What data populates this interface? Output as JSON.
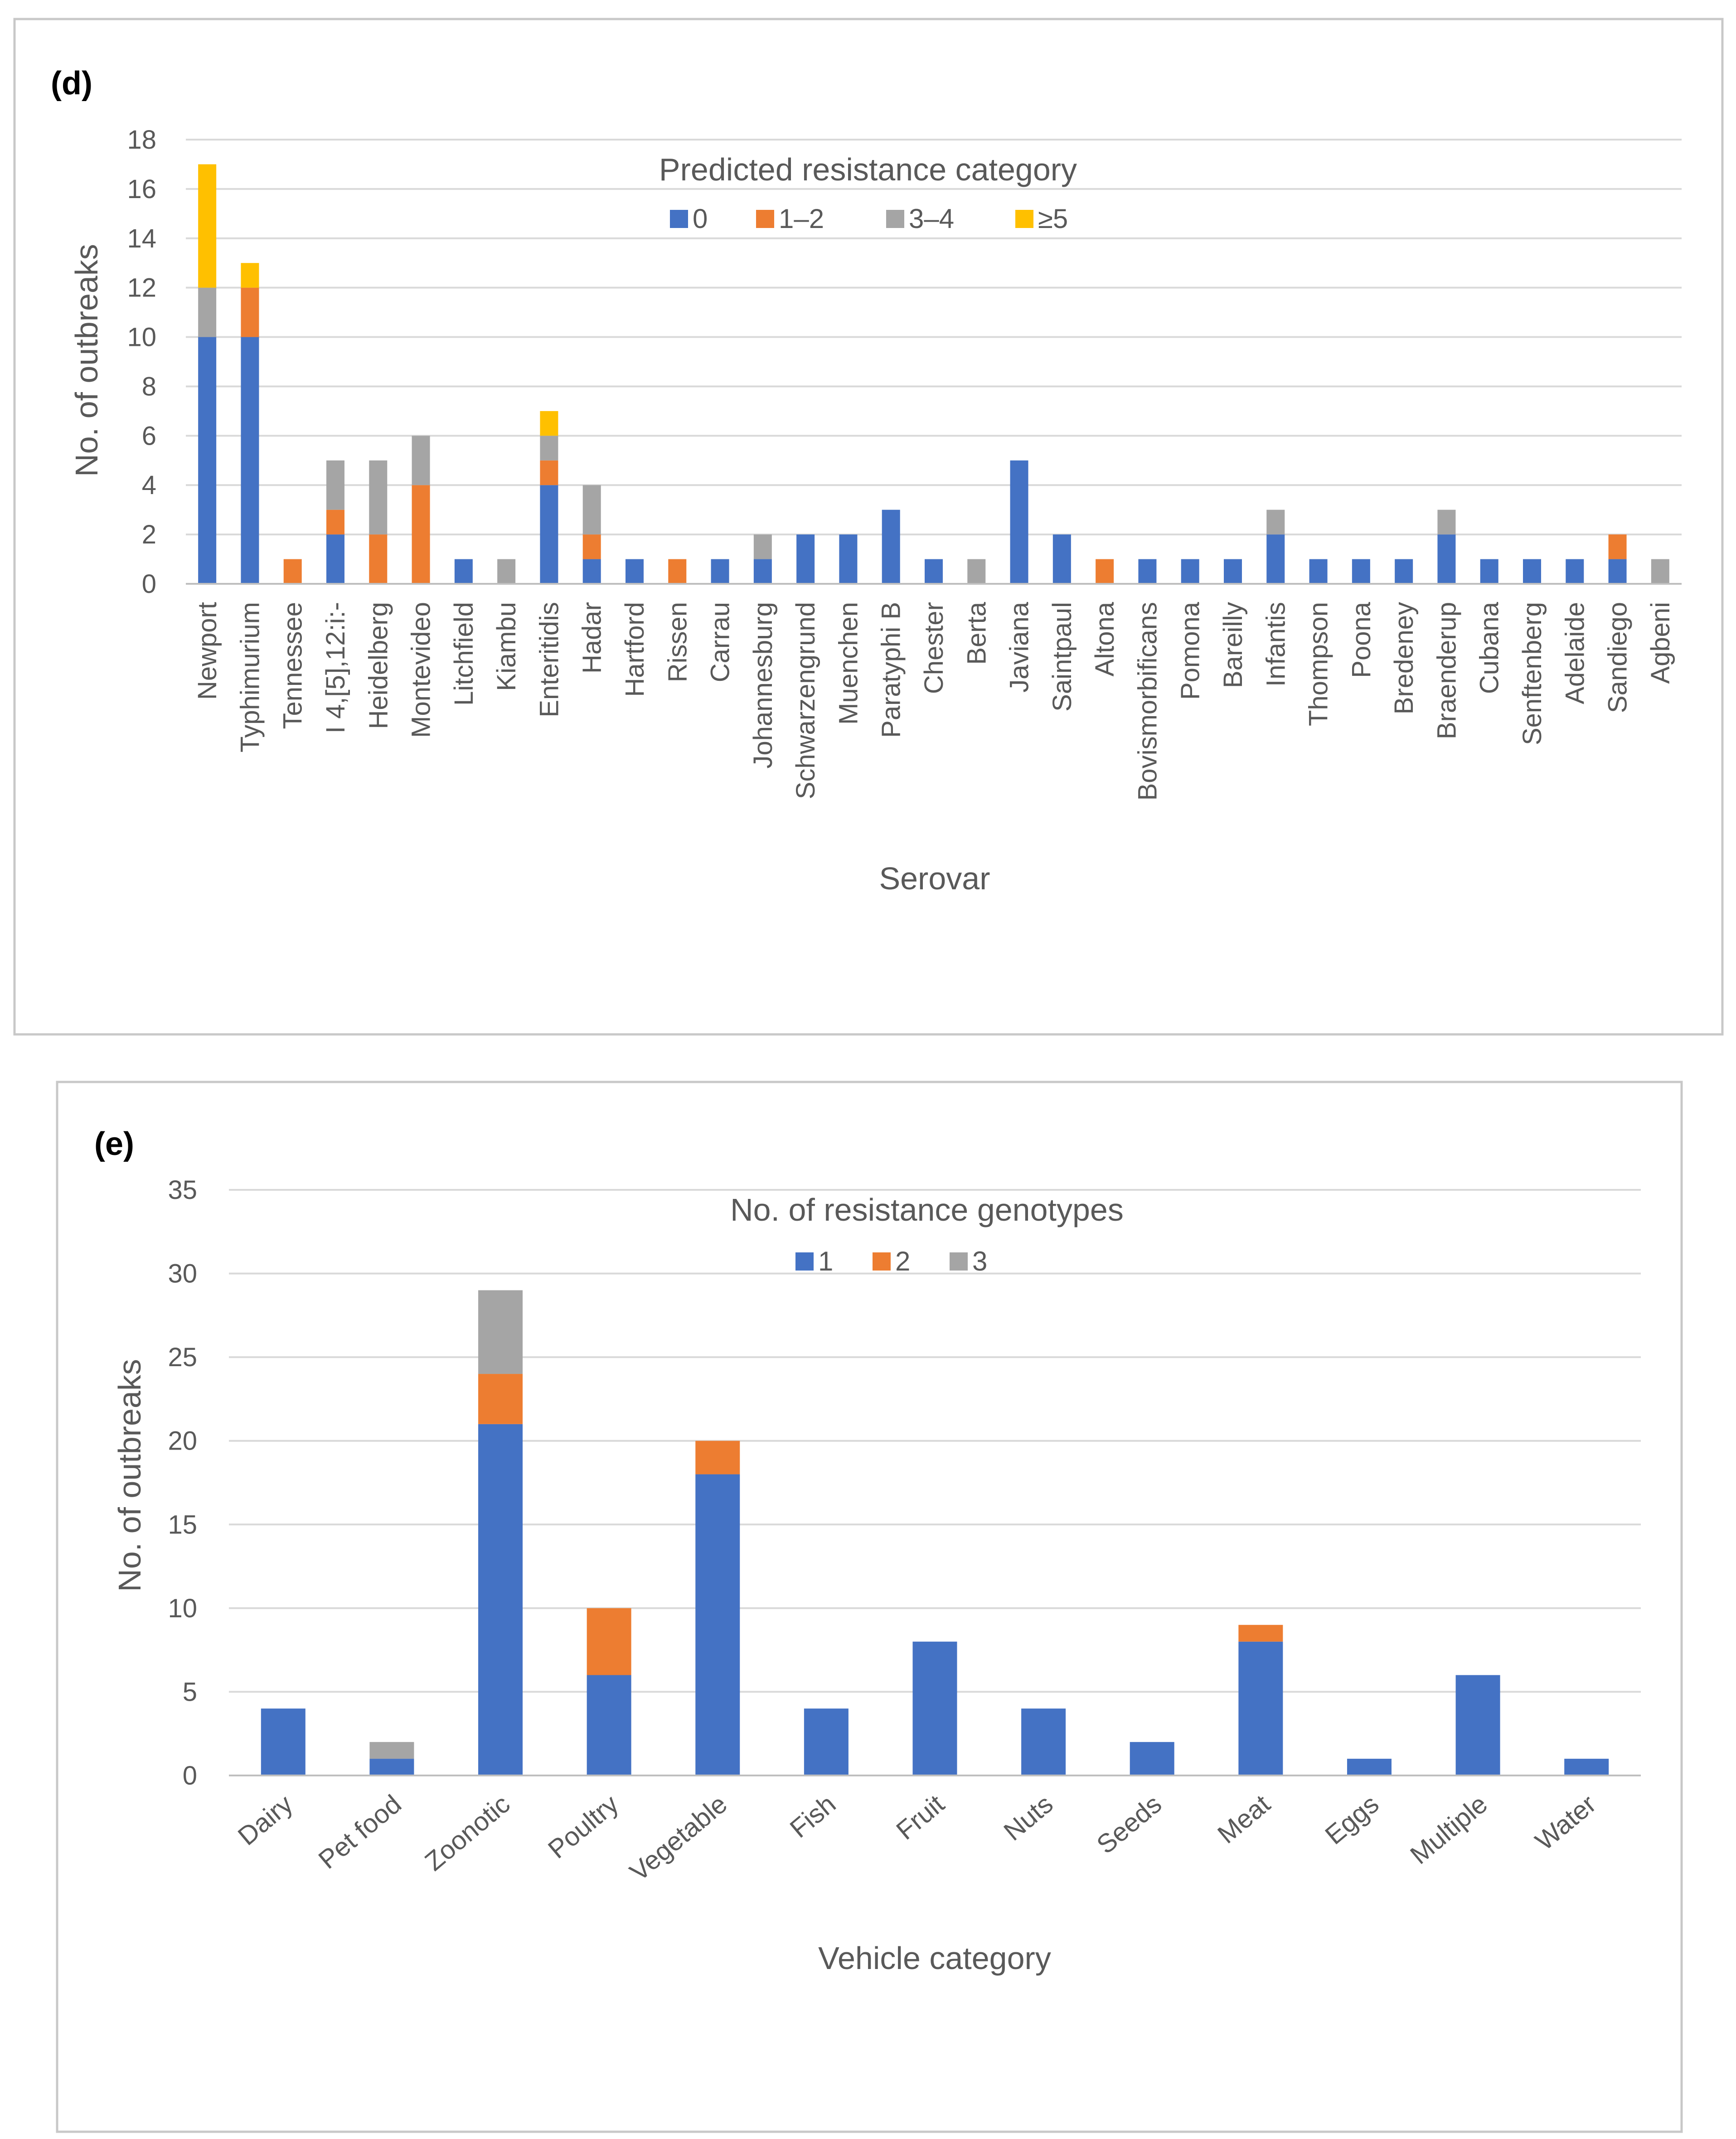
{
  "chart_data": [
    {
      "type": "bar",
      "stacked": true,
      "panel_label": "(d)",
      "xlabel": "Serovar",
      "ylabel": "No. of outbreaks",
      "ylim": [
        0,
        18
      ],
      "yticks": [
        0,
        2,
        4,
        6,
        8,
        10,
        12,
        14,
        16,
        18
      ],
      "grid": true,
      "legend_title": "Predicted resistance category",
      "legend_position": "top-center",
      "categories": [
        "Newport",
        "Typhimurium",
        "Tennessee",
        "I 4,[5],12:i:-",
        "Heidelberg",
        "Montevideo",
        "Litchfield",
        "Kiambu",
        "Enteritidis",
        "Hadar",
        "Hartford",
        "Rissen",
        "Carrau",
        "Johannesburg",
        "Schwarzengrund",
        "Muenchen",
        "Paratyphi B",
        "Chester",
        "Berta",
        "Javiana",
        "Saintpaul",
        "Altona",
        "Bovismorbificans",
        "Pomona",
        "Bareilly",
        "Infantis",
        "Thompson",
        "Poona",
        "Bredeney",
        "Braenderup",
        "Cubana",
        "Senftenberg",
        "Adelaide",
        "Sandiego",
        "Agbeni"
      ],
      "series": [
        {
          "name": "0",
          "color": "#4472c4",
          "values": [
            10,
            10,
            0,
            2,
            0,
            0,
            1,
            0,
            4,
            1,
            1,
            0,
            1,
            1,
            2,
            2,
            3,
            1,
            0,
            5,
            2,
            0,
            1,
            1,
            1,
            2,
            1,
            1,
            1,
            2,
            1,
            1,
            1,
            1,
            0
          ]
        },
        {
          "name": "1–2",
          "color": "#ed7d31",
          "values": [
            0,
            2,
            1,
            1,
            2,
            4,
            0,
            0,
            1,
            1,
            0,
            1,
            0,
            0,
            0,
            0,
            0,
            0,
            0,
            0,
            0,
            1,
            0,
            0,
            0,
            0,
            0,
            0,
            0,
            0,
            0,
            0,
            0,
            1,
            0
          ]
        },
        {
          "name": "3–4",
          "color": "#a5a5a5",
          "values": [
            2,
            0,
            0,
            2,
            3,
            2,
            0,
            1,
            1,
            2,
            0,
            0,
            0,
            1,
            0,
            0,
            0,
            0,
            1,
            0,
            0,
            0,
            0,
            0,
            0,
            1,
            0,
            0,
            0,
            1,
            0,
            0,
            0,
            0,
            1
          ]
        },
        {
          "name": "≥5",
          "color": "#ffc000",
          "values": [
            5,
            1,
            0,
            0,
            0,
            0,
            0,
            0,
            1,
            0,
            0,
            0,
            0,
            0,
            0,
            0,
            0,
            0,
            0,
            0,
            0,
            0,
            0,
            0,
            0,
            0,
            0,
            0,
            0,
            0,
            0,
            0,
            0,
            0,
            0
          ]
        }
      ]
    },
    {
      "type": "bar",
      "stacked": true,
      "panel_label": "(e)",
      "xlabel": "Vehicle category",
      "ylabel": "No. of outbreaks",
      "ylim": [
        0,
        35
      ],
      "yticks": [
        0,
        5,
        10,
        15,
        20,
        25,
        30,
        35
      ],
      "grid": true,
      "legend_title": "No. of resistance genotypes",
      "legend_position": "top-center",
      "categories": [
        "Dairy",
        "Pet food",
        "Zoonotic",
        "Poultry",
        "Vegetable",
        "Fish",
        "Fruit",
        "Nuts",
        "Seeds",
        "Meat",
        "Eggs",
        "Multiple",
        "Water"
      ],
      "series": [
        {
          "name": "1",
          "color": "#4472c4",
          "values": [
            4,
            1,
            21,
            6,
            18,
            4,
            8,
            4,
            2,
            8,
            1,
            6,
            1
          ]
        },
        {
          "name": "2",
          "color": "#ed7d31",
          "values": [
            0,
            0,
            3,
            4,
            2,
            0,
            0,
            0,
            0,
            1,
            0,
            0,
            0
          ]
        },
        {
          "name": "3",
          "color": "#a5a5a5",
          "values": [
            0,
            1,
            5,
            0,
            0,
            0,
            0,
            0,
            0,
            0,
            0,
            0,
            0
          ]
        }
      ]
    }
  ]
}
